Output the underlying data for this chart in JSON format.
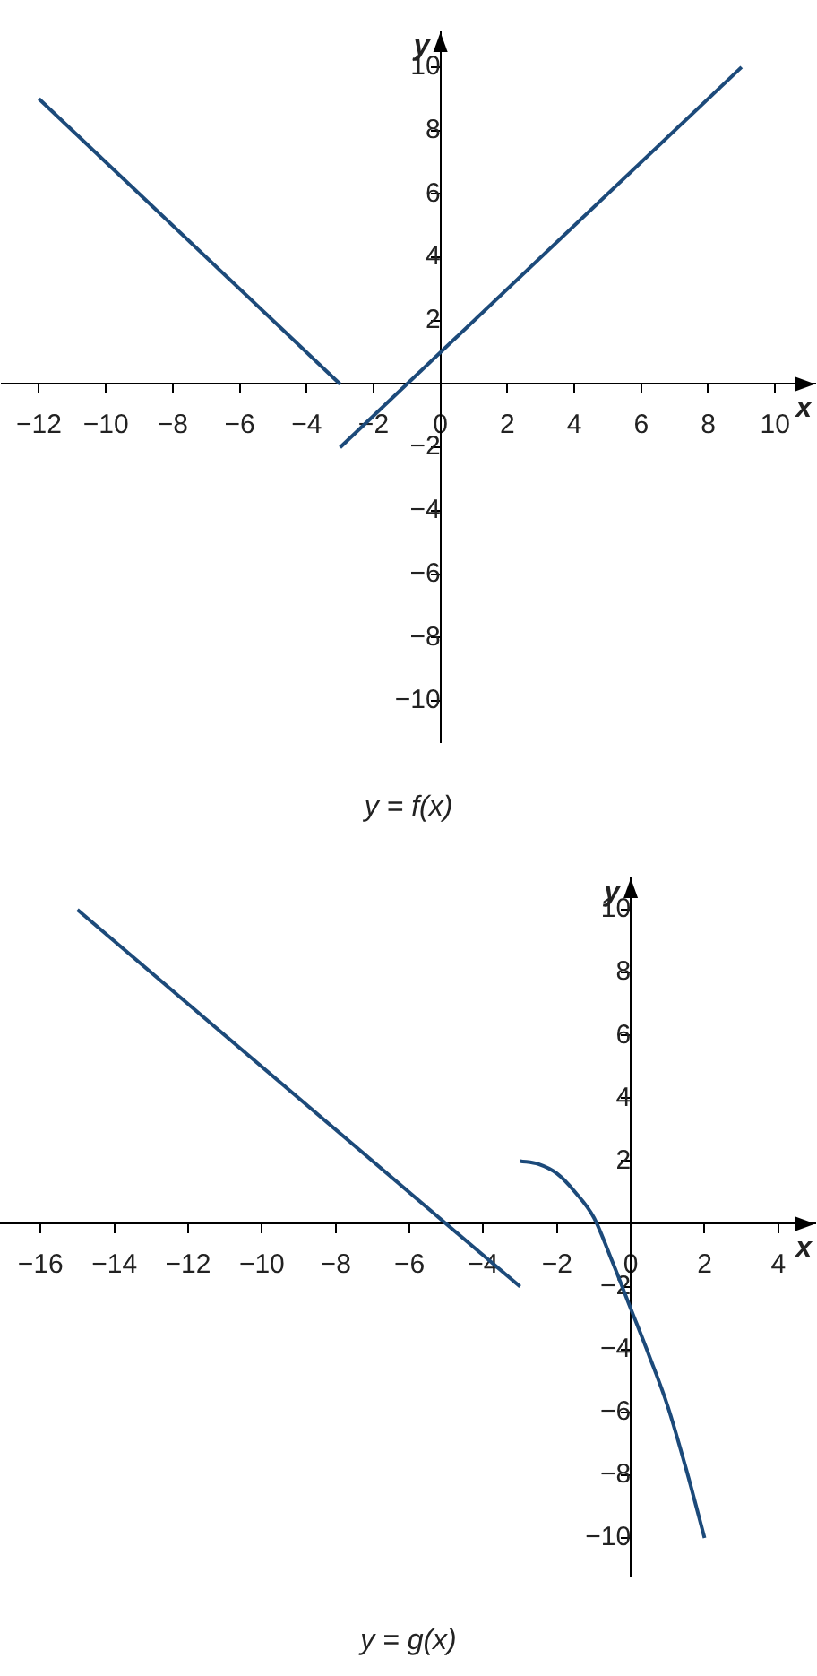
{
  "chart_data": [
    {
      "type": "line",
      "title": "y = f(x)",
      "xlabel": "x",
      "ylabel": "y",
      "xlim": [
        -13.1,
        11.2
      ],
      "ylim": [
        -11.3,
        11.1
      ],
      "xticks": [
        {
          "value": -12,
          "label": "−12"
        },
        {
          "value": -10,
          "label": "−10"
        },
        {
          "value": -8,
          "label": "−8"
        },
        {
          "value": -6,
          "label": "−6"
        },
        {
          "value": -4,
          "label": "−4"
        },
        {
          "value": -2,
          "label": "−2"
        },
        0,
        2,
        4,
        6,
        8,
        10
      ],
      "yticks": [
        {
          "value": -10,
          "label": "−10"
        },
        {
          "value": -8,
          "label": "−8"
        },
        {
          "value": -6,
          "label": "−6"
        },
        {
          "value": -4,
          "label": "−4"
        },
        {
          "value": -2,
          "label": "−2"
        },
        2,
        4,
        6,
        8,
        10
      ],
      "series": [
        {
          "color": "#1c4a7a",
          "x": [
            -12,
            -3
          ],
          "values": [
            9,
            0
          ]
        },
        {
          "color": "#1c4a7a",
          "x": [
            -3,
            9
          ],
          "values": [
            -2,
            10
          ]
        }
      ]
    },
    {
      "type": "line",
      "title": "y = g(x)",
      "xlabel": "x",
      "ylabel": "y",
      "xlim": [
        -17.1,
        5
      ],
      "ylim": [
        -11.2,
        11
      ],
      "xticks": [
        {
          "value": -16,
          "label": "−16"
        },
        {
          "value": -14,
          "label": "−14"
        },
        {
          "value": -12,
          "label": "−12"
        },
        {
          "value": -10,
          "label": "−10"
        },
        {
          "value": -8,
          "label": "−8"
        },
        {
          "value": -6,
          "label": "−6"
        },
        {
          "value": -4,
          "label": "−4"
        },
        {
          "value": -2,
          "label": "−2"
        },
        0,
        2,
        4
      ],
      "yticks": [
        {
          "value": -10,
          "label": "−10"
        },
        {
          "value": -8,
          "label": "−8"
        },
        {
          "value": -6,
          "label": "−6"
        },
        {
          "value": -4,
          "label": "−4"
        },
        {
          "value": -2,
          "label": "−2"
        },
        2,
        4,
        6,
        8,
        10
      ],
      "series": [
        {
          "color": "#1c4a7a",
          "x": [
            -15,
            -3
          ],
          "values": [
            10,
            -2
          ]
        },
        {
          "color": "#1c4a7a",
          "x": [
            -3,
            -2.5,
            -2,
            -1.5,
            -1,
            -0.5,
            0,
            0.5,
            1,
            1.5,
            2
          ],
          "values": [
            2,
            1.9,
            1.6,
            1,
            0.2,
            -1.2,
            -2.7,
            -4.2,
            -5.8,
            -7.8,
            -10
          ]
        }
      ]
    }
  ]
}
